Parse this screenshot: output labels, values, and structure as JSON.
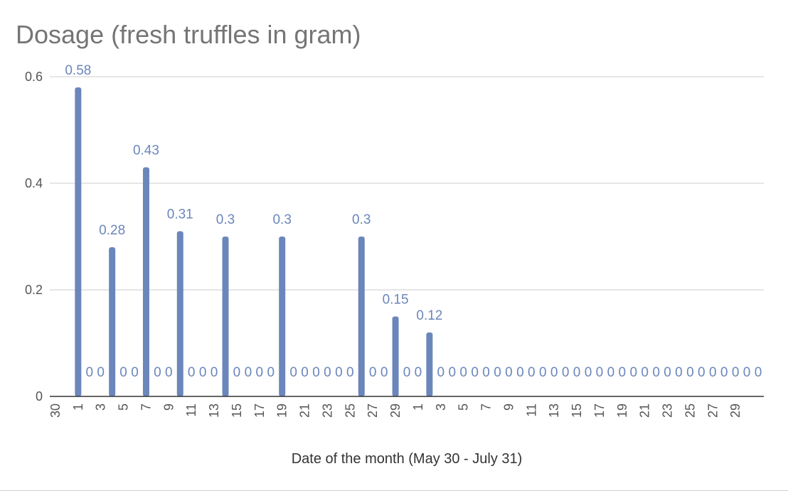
{
  "chart_data": {
    "type": "bar",
    "title": "Dosage (fresh truffles in gram)",
    "xlabel": "Date of the month (May 30 - July 31)",
    "ylabel": "",
    "ylim": [
      0,
      0.6
    ],
    "yticks": [
      "0",
      "0.2",
      "0.4",
      "0.6"
    ],
    "categories": [
      "30",
      "31",
      "1",
      "2",
      "3",
      "4",
      "5",
      "6",
      "7",
      "8",
      "9",
      "10",
      "11",
      "12",
      "13",
      "14",
      "15",
      "16",
      "17",
      "18",
      "19",
      "20",
      "21",
      "22",
      "23",
      "24",
      "25",
      "26",
      "27",
      "28",
      "29",
      "30",
      "1",
      "2",
      "3",
      "4",
      "5",
      "6",
      "7",
      "8",
      "9",
      "10",
      "11",
      "12",
      "13",
      "14",
      "15",
      "16",
      "17",
      "18",
      "19",
      "20",
      "21",
      "22",
      "23",
      "24",
      "25",
      "26",
      "27",
      "28",
      "29",
      "30",
      "31"
    ],
    "tick_labels": [
      "30",
      "1",
      "3",
      "5",
      "7",
      "9",
      "11",
      "13",
      "15",
      "17",
      "19",
      "21",
      "23",
      "25",
      "27",
      "29",
      "1",
      "3",
      "5",
      "7",
      "9",
      "11",
      "13",
      "15",
      "17",
      "19",
      "21",
      "23",
      "25",
      "27",
      "29"
    ],
    "values": [
      null,
      null,
      0.58,
      0,
      0,
      0.28,
      0,
      0,
      0.43,
      0,
      0,
      0.31,
      0,
      0,
      0,
      0.3,
      0,
      0,
      0,
      0,
      0.3,
      0,
      0,
      0,
      0,
      0,
      0,
      0.3,
      0,
      0,
      0.15,
      0,
      0,
      0.12,
      0,
      0,
      0,
      0,
      0,
      0,
      0,
      0,
      0,
      0,
      0,
      0,
      0,
      0,
      0,
      0,
      0,
      0,
      0,
      0,
      0,
      0,
      0,
      0,
      0,
      0,
      0,
      0,
      0
    ],
    "data_labels": [
      null,
      null,
      "0.58",
      "0",
      "0",
      "0.28",
      "0",
      "0",
      "0.43",
      "0",
      "0",
      "0.31",
      "0",
      "0",
      "0",
      "0.3",
      "0",
      "0",
      "0",
      "0",
      "0.3",
      "0",
      "0",
      "0",
      "0",
      "0",
      "0",
      "0.3",
      "0",
      "0",
      "0.15",
      "0",
      "0",
      "0.12",
      "0",
      "0",
      "0",
      "0",
      "0",
      "0",
      "0",
      "0",
      "0",
      "0",
      "0",
      "0",
      "0",
      "0",
      "0",
      "0",
      "0",
      "0",
      "0",
      "0",
      "0",
      "0",
      "0",
      "0",
      "0",
      "0",
      "0",
      "0",
      "0"
    ],
    "grid": true,
    "legend": "none",
    "colors": {
      "bar": "#6b86bb",
      "label": "#6b86bb",
      "axis": "#333333",
      "grid": "#cccccc",
      "tick_text": "#555555",
      "title": "#757575"
    }
  }
}
